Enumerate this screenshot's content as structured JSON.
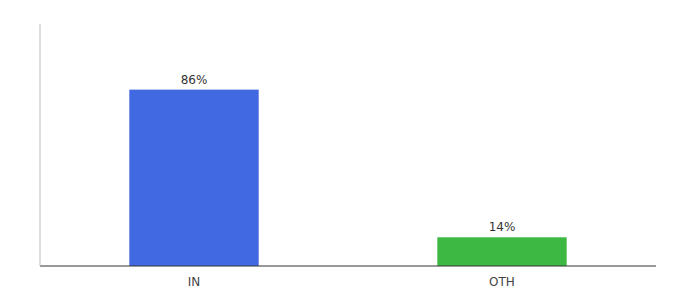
{
  "chart_data": {
    "type": "bar",
    "categories": [
      "IN",
      "OTH"
    ],
    "values": [
      86,
      14
    ],
    "value_labels": [
      "86%",
      "14%"
    ],
    "colors": [
      "#4169e1",
      "#3cb843"
    ],
    "ylim": [
      0,
      118
    ],
    "data_labels": true,
    "tick_labels": "x",
    "grid": false
  }
}
